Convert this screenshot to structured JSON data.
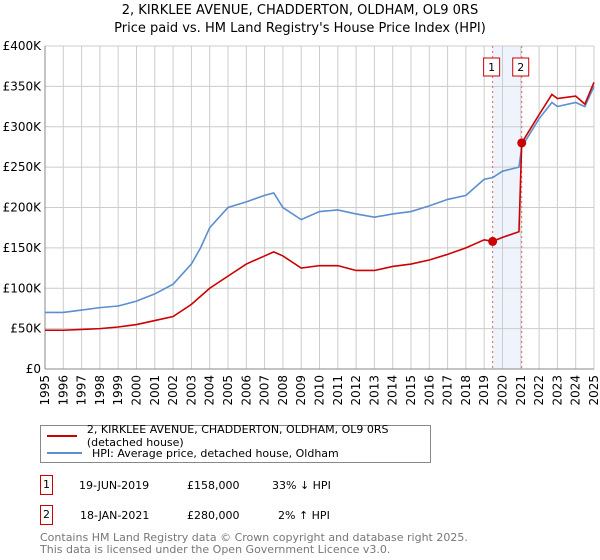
{
  "title": "2, KIRKLEE AVENUE, CHADDERTON, OLDHAM, OL9 0RS",
  "subtitle": "Price paid vs. HM Land Registry's House Price Index (HPI)",
  "chart_data": {
    "type": "line",
    "xlim": [
      1995,
      2025
    ],
    "ylim": [
      0,
      400000
    ],
    "yticks": [
      {
        "v": 0,
        "l": "£0"
      },
      {
        "v": 50000,
        "l": "£50K"
      },
      {
        "v": 100000,
        "l": "£100K"
      },
      {
        "v": 150000,
        "l": "£150K"
      },
      {
        "v": 200000,
        "l": "£200K"
      },
      {
        "v": 250000,
        "l": "£250K"
      },
      {
        "v": 300000,
        "l": "£300K"
      },
      {
        "v": 350000,
        "l": "£350K"
      },
      {
        "v": 400000,
        "l": "£400K"
      }
    ],
    "xticks": [
      "1995",
      "1996",
      "1997",
      "1998",
      "1999",
      "2000",
      "2001",
      "2002",
      "2003",
      "2004",
      "2005",
      "2006",
      "2007",
      "2008",
      "2009",
      "2010",
      "2011",
      "2012",
      "2013",
      "2014",
      "2015",
      "2016",
      "2017",
      "2018",
      "2019",
      "2020",
      "2021",
      "2022",
      "2023",
      "2024",
      "2025"
    ],
    "series": [
      {
        "name": "2, KIRKLEE AVENUE, CHADDERTON, OLDHAM, OL9 0RS (detached house)",
        "color": "#cc0000",
        "x": [
          1995,
          1996,
          1997,
          1998,
          1999,
          2000,
          2001,
          2002,
          2003,
          2004,
          2005,
          2006,
          2007,
          2007.5,
          2008,
          2009,
          2010,
          2011,
          2012,
          2013,
          2014,
          2015,
          2016,
          2017,
          2018,
          2019,
          2019.46,
          2020,
          2020.9,
          2021.05,
          2022,
          2022.7,
          2023,
          2024,
          2024.5,
          2025
        ],
        "y": [
          48000,
          48000,
          49000,
          50000,
          52000,
          55000,
          60000,
          65000,
          80000,
          100000,
          115000,
          130000,
          140000,
          145000,
          140000,
          125000,
          128000,
          128000,
          122000,
          122000,
          127000,
          130000,
          135000,
          142000,
          150000,
          160000,
          158000,
          163000,
          170000,
          280000,
          315000,
          340000,
          335000,
          338000,
          328000,
          355000
        ]
      },
      {
        "name": "HPI: Average price, detached house, Oldham",
        "color": "#5b8fd0",
        "x": [
          1995,
          1996,
          1997,
          1998,
          1999,
          2000,
          2001,
          2002,
          2003,
          2003.5,
          2004,
          2005,
          2006,
          2007,
          2007.5,
          2008,
          2009,
          2010,
          2011,
          2012,
          2013,
          2014,
          2015,
          2016,
          2017,
          2018,
          2019,
          2019.46,
          2020,
          2020.9,
          2021.05,
          2022,
          2022.7,
          2023,
          2024,
          2024.5,
          2025
        ],
        "y": [
          70000,
          70000,
          73000,
          76000,
          78000,
          84000,
          93000,
          105000,
          130000,
          150000,
          175000,
          200000,
          207000,
          215000,
          218000,
          200000,
          185000,
          195000,
          197000,
          192000,
          188000,
          192000,
          195000,
          202000,
          210000,
          215000,
          235000,
          237000,
          245000,
          250000,
          275000,
          310000,
          330000,
          325000,
          330000,
          325000,
          350000
        ]
      }
    ],
    "sales": [
      {
        "x": 2019.46,
        "y": 158000,
        "label": "1"
      },
      {
        "x": 2021.05,
        "y": 280000,
        "label": "2"
      }
    ]
  },
  "legend": [
    "2, KIRKLEE AVENUE, CHADDERTON, OLDHAM, OL9 0RS (detached house)",
    "HPI: Average price, detached house, Oldham"
  ],
  "transactions": [
    {
      "num": "1",
      "date": "19-JUN-2019",
      "price": "£158,000",
      "hpi": "33% ↓ HPI"
    },
    {
      "num": "2",
      "date": "18-JAN-2021",
      "price": "£280,000",
      "hpi": "2% ↑ HPI"
    }
  ],
  "footer": [
    "Contains HM Land Registry data © Crown copyright and database right 2025.",
    "This data is licensed under the Open Government Licence v3.0."
  ]
}
